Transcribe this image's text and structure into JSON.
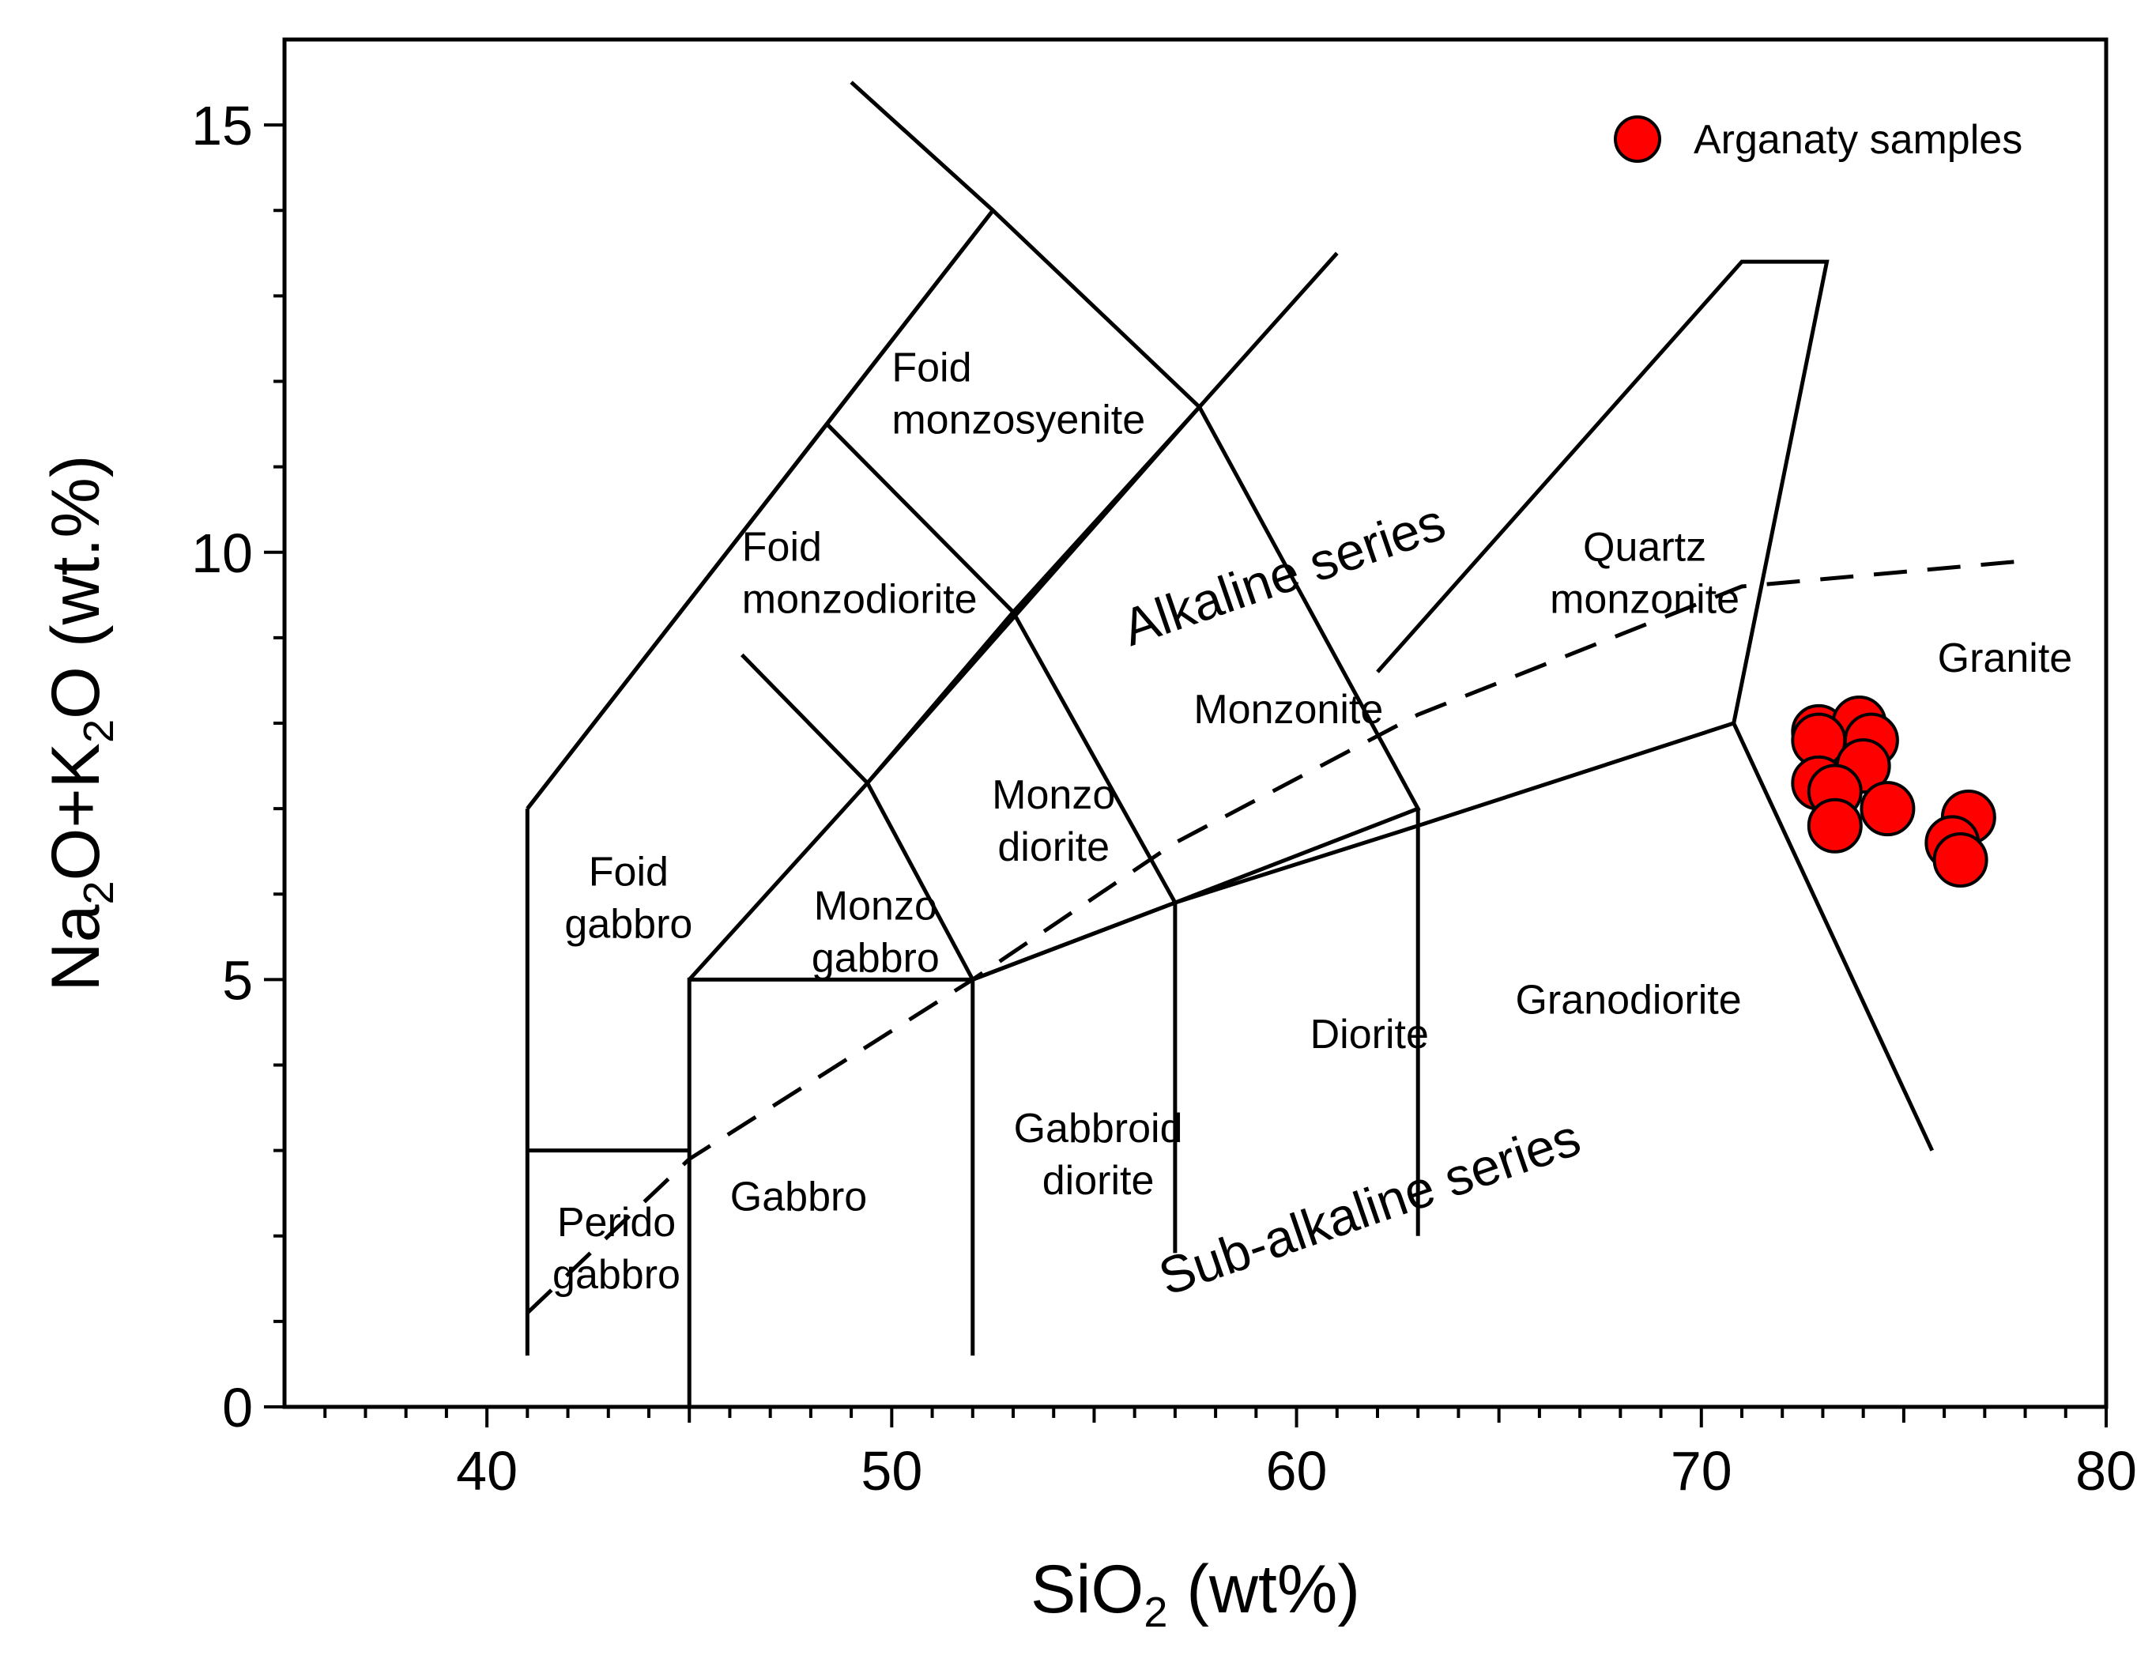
{
  "chart_data": {
    "type": "scatter",
    "title": "",
    "xlabel": {
      "base": "SiO",
      "sub": "2",
      "rest": " (wt%)"
    },
    "ylabel": {
      "parts": [
        "Na",
        "2",
        "O+K",
        "2",
        "O (wt.%)"
      ]
    },
    "xlim": [
      35,
      80
    ],
    "ylim": [
      0,
      16
    ],
    "x_ticks": [
      40,
      50,
      60,
      70,
      80
    ],
    "y_ticks": [
      0,
      5,
      10,
      15
    ],
    "x_tick_labels": [
      "40",
      "50",
      "60",
      "70",
      "80"
    ],
    "y_tick_labels": [
      "0",
      "5",
      "10",
      "15"
    ],
    "grid": false,
    "legend_position": "top-right",
    "series": [
      {
        "name": "Arganaty samples",
        "color": "#ff0000",
        "edge_color": "#000000",
        "points": [
          {
            "x": 72.9,
            "y": 7.9
          },
          {
            "x": 73.9,
            "y": 8.0
          },
          {
            "x": 74.2,
            "y": 7.8
          },
          {
            "x": 72.9,
            "y": 7.8
          },
          {
            "x": 74.0,
            "y": 7.5
          },
          {
            "x": 72.9,
            "y": 7.3
          },
          {
            "x": 73.3,
            "y": 7.2
          },
          {
            "x": 74.6,
            "y": 7.0
          },
          {
            "x": 73.3,
            "y": 6.8
          },
          {
            "x": 76.6,
            "y": 6.9
          },
          {
            "x": 76.2,
            "y": 6.6
          },
          {
            "x": 76.4,
            "y": 6.4
          }
        ]
      }
    ],
    "boundaries": [
      {
        "style": "solid",
        "points": [
          [
            41,
            0.6
          ],
          [
            41,
            7
          ]
        ]
      },
      {
        "style": "solid",
        "points": [
          [
            41,
            7
          ],
          [
            48.4,
            11.5
          ],
          [
            52.5,
            14
          ],
          [
            48.4,
            11.5
          ]
        ]
      },
      {
        "style": "solid",
        "points": [
          [
            41,
            7
          ],
          [
            52.5,
            14
          ]
        ]
      },
      {
        "style": "solid",
        "points": [
          [
            49,
            15.5
          ],
          [
            52.5,
            14
          ],
          [
            57.6,
            11.7
          ],
          [
            53,
            9.3
          ],
          [
            48.4,
            11.5
          ]
        ]
      },
      {
        "style": "solid",
        "points": [
          [
            46.3,
            8.8
          ],
          [
            49.4,
            7.3
          ],
          [
            53,
            9.3
          ]
        ]
      },
      {
        "style": "solid",
        "points": [
          [
            45,
            5
          ],
          [
            49.4,
            7.3
          ],
          [
            57.6,
            11.7
          ],
          [
            61,
            13.5
          ]
        ]
      },
      {
        "style": "solid",
        "points": [
          [
            53,
            9.3
          ],
          [
            57,
            5.9
          ],
          [
            52,
            5
          ]
        ]
      },
      {
        "style": "solid",
        "points": [
          [
            49.4,
            7.3
          ],
          [
            52,
            5
          ]
        ]
      },
      {
        "style": "solid",
        "points": [
          [
            57.6,
            11.7
          ],
          [
            63,
            7
          ],
          [
            57,
            5.9
          ]
        ]
      },
      {
        "style": "solid",
        "points": [
          [
            52,
            5
          ],
          [
            57,
            5.9
          ],
          [
            63,
            6.8
          ],
          [
            70.8,
            8
          ]
        ]
      },
      {
        "style": "solid",
        "points": [
          [
            62,
            8.6
          ],
          [
            71,
            13.4
          ],
          [
            73.1,
            13.4
          ],
          [
            70.8,
            8
          ],
          [
            75.7,
            3
          ]
        ]
      },
      {
        "style": "solid",
        "points": [
          [
            41,
            3
          ],
          [
            45,
            3
          ]
        ]
      },
      {
        "style": "solid",
        "points": [
          [
            45,
            0
          ],
          [
            45,
            5
          ],
          [
            52,
            5
          ]
        ]
      },
      {
        "style": "solid",
        "points": [
          [
            52,
            0.6
          ],
          [
            52,
            5
          ]
        ]
      },
      {
        "style": "solid",
        "points": [
          [
            57,
            1.8
          ],
          [
            57,
            5.9
          ]
        ]
      },
      {
        "style": "solid",
        "points": [
          [
            63,
            2
          ],
          [
            63,
            7
          ]
        ]
      },
      {
        "style": "dashed",
        "points": [
          [
            41,
            1.1
          ],
          [
            45,
            2.9
          ],
          [
            52,
            5
          ],
          [
            57,
            6.6
          ],
          [
            63,
            8.1
          ],
          [
            71,
            9.6
          ],
          [
            78,
            9.9
          ]
        ]
      }
    ],
    "region_labels": [
      {
        "lines": [
          "Foid",
          "monzosyenite"
        ],
        "x": 50.0,
        "y": 12.0,
        "anchor": "start"
      },
      {
        "lines": [
          "Foid",
          "monzodiorite"
        ],
        "x": 46.3,
        "y": 9.9,
        "anchor": "start"
      },
      {
        "lines": [
          "Foid",
          "gabbro"
        ],
        "x": 43.5,
        "y": 6.1,
        "anchor": "middle"
      },
      {
        "lines": [
          "Monzo",
          "gabbro"
        ],
        "x": 49.6,
        "y": 5.7,
        "anchor": "middle"
      },
      {
        "lines": [
          "Monzo",
          "diorite"
        ],
        "x": 54.0,
        "y": 7.0,
        "anchor": "middle"
      },
      {
        "lines": [
          "Monzonite"
        ],
        "x": 59.8,
        "y": 8.0,
        "anchor": "middle"
      },
      {
        "lines": [
          "Quartz",
          "monzonite"
        ],
        "x": 68.6,
        "y": 9.9,
        "anchor": "middle"
      },
      {
        "lines": [
          "Granite"
        ],
        "x": 77.5,
        "y": 8.6,
        "anchor": "middle"
      },
      {
        "lines": [
          "Granodiorite"
        ],
        "x": 68.2,
        "y": 4.6,
        "anchor": "middle"
      },
      {
        "lines": [
          "Diorite"
        ],
        "x": 61.8,
        "y": 4.2,
        "anchor": "middle"
      },
      {
        "lines": [
          "Gabbroid",
          "diorite"
        ],
        "x": 55.1,
        "y": 3.1,
        "anchor": "middle"
      },
      {
        "lines": [
          "Gabbro"
        ],
        "x": 47.7,
        "y": 2.3,
        "anchor": "middle"
      },
      {
        "lines": [
          "Perido",
          "gabbro"
        ],
        "x": 43.2,
        "y": 2.0,
        "anchor": "middle"
      }
    ],
    "series_labels": [
      {
        "text": "Alkaline series",
        "x": 55.9,
        "y": 8.9,
        "angle": -19
      },
      {
        "text": "Sub-alkaline series",
        "x": 56.8,
        "y": 1.3,
        "angle": -19
      }
    ]
  }
}
